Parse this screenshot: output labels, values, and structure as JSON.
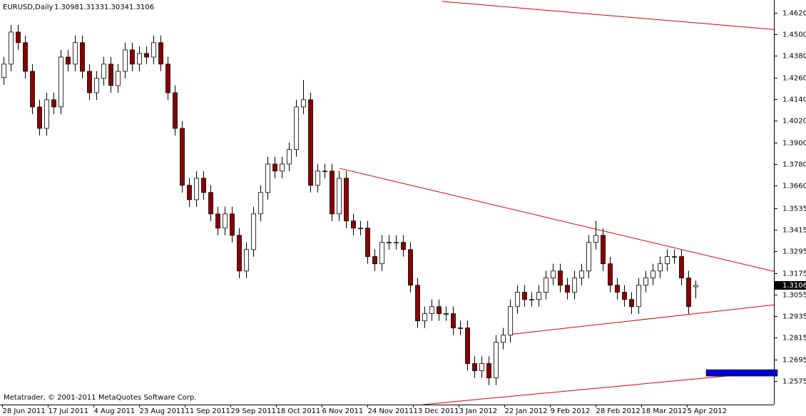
{
  "chart_data": {
    "type": "candlestick",
    "symbol": "EURUSD,Daily",
    "footer": "Metatrader, © 2001-2011 MetaQuotes Software Corp.",
    "xlim": [
      -0.5,
      108
    ],
    "xticks": [
      {
        "value": -0.2,
        "label": "28 Jun 2011"
      },
      {
        "value": 6.2,
        "label": "17 Jul 2011"
      },
      {
        "value": 12.6,
        "label": "4 Aug 2011"
      },
      {
        "value": 19,
        "label": "23 Aug 2011"
      },
      {
        "value": 25.4,
        "label": "11 Sep 2011"
      },
      {
        "value": 31.8,
        "label": "29 Sep 2011"
      },
      {
        "value": 38.2,
        "label": "18 Oct 2011"
      },
      {
        "value": 44.6,
        "label": "6 Nov 2011"
      },
      {
        "value": 51,
        "label": "24 Nov 2011"
      },
      {
        "value": 57.4,
        "label": "13 Dec 2011"
      },
      {
        "value": 63.8,
        "label": "3 Jan 2012"
      },
      {
        "value": 70.2,
        "label": "22 Jan 2012"
      },
      {
        "value": 76.6,
        "label": "9 Feb 2012"
      },
      {
        "value": 83,
        "label": "28 Feb 2012"
      },
      {
        "value": 89.4,
        "label": "18 Mar 2012"
      },
      {
        "value": 95.8,
        "label": "5 Apr 2012"
      }
    ],
    "ylim": [
      1.2444,
      1.4691
    ],
    "yticks": [
      {
        "value": 1.462,
        "label": "1.4620"
      },
      {
        "value": 1.45,
        "label": "1.4500"
      },
      {
        "value": 1.438,
        "label": "1.4380"
      },
      {
        "value": 1.426,
        "label": "1.4260"
      },
      {
        "value": 1.414,
        "label": "1.4140"
      },
      {
        "value": 1.402,
        "label": "1.4020"
      },
      {
        "value": 1.39,
        "label": "1.3900"
      },
      {
        "value": 1.378,
        "label": "1.3780"
      },
      {
        "value": 1.366,
        "label": "1.3660"
      },
      1.3535,
      1.3415,
      1.3295,
      1.3175,
      1.3055,
      1.2935,
      1.2815,
      1.2695,
      1.2575
    ],
    "up_color": "#ffffff",
    "down_color": "#8b0000",
    "open": [
      1.426,
      1.4335,
      1.4513,
      1.4454,
      1.4295,
      1.4097,
      1.3978,
      1.4137,
      1.4097,
      1.4374,
      1.4335,
      1.4454,
      1.4295,
      1.4176,
      1.4256,
      1.4335,
      1.4216,
      1.4295,
      1.4414,
      1.4335,
      1.4394,
      1.4374,
      1.4454,
      1.4335,
      1.4176,
      1.3978,
      1.3662,
      1.3582,
      1.3701,
      1.3622,
      1.3503,
      1.3424,
      1.3503,
      1.3384,
      1.3186,
      1.3305,
      1.3503,
      1.3622,
      1.378,
      1.3741,
      1.378,
      1.386,
      1.4097,
      1.4137,
      1.3662,
      1.3741,
      1.3741,
      1.3503,
      1.3701,
      1.3464,
      1.3424,
      1.3424,
      1.3266,
      1.3226,
      1.3345,
      1.3345,
      1.3345,
      1.3305,
      1.3107,
      1.2909,
      1.2949,
      1.2988,
      1.2949,
      1.2949,
      1.287,
      1.287,
      1.2672,
      1.2632,
      1.2672,
      1.2592,
      1.279,
      1.283,
      1.2988,
      1.3068,
      1.3028,
      1.3028,
      1.3068,
      1.3147,
      1.3186,
      1.3107,
      1.3068,
      1.3147,
      1.3186,
      1.3345,
      1.3384,
      1.3226,
      1.3107,
      1.3068,
      1.3028,
      1.2988,
      1.3107,
      1.3147,
      1.3186,
      1.3226,
      1.3266,
      1.3266,
      1.3147,
      1.3098
    ],
    "high": [
      1.4375,
      1.4553,
      1.4553,
      1.4494,
      1.4335,
      1.4137,
      1.4177,
      1.4177,
      1.4414,
      1.4414,
      1.4494,
      1.4494,
      1.4335,
      1.4296,
      1.4375,
      1.4375,
      1.4335,
      1.4454,
      1.4454,
      1.4434,
      1.4434,
      1.4494,
      1.4494,
      1.4375,
      1.4216,
      1.4018,
      1.3702,
      1.3741,
      1.3741,
      1.3662,
      1.3543,
      1.3543,
      1.3543,
      1.3424,
      1.3345,
      1.3543,
      1.3662,
      1.382,
      1.382,
      1.382,
      1.39,
      1.4137,
      1.4247,
      1.4177,
      1.3781,
      1.3781,
      1.3781,
      1.3741,
      1.3741,
      1.3504,
      1.3464,
      1.3464,
      1.3306,
      1.3385,
      1.3385,
      1.3385,
      1.3385,
      1.3345,
      1.3147,
      1.2989,
      1.3028,
      1.3028,
      1.2989,
      1.2989,
      1.291,
      1.291,
      1.2712,
      1.2712,
      1.2712,
      1.283,
      1.287,
      1.3028,
      1.3108,
      1.3108,
      1.3068,
      1.3108,
      1.3187,
      1.3226,
      1.3226,
      1.3147,
      1.3187,
      1.3226,
      1.3385,
      1.3464,
      1.3424,
      1.3266,
      1.3147,
      1.3108,
      1.3068,
      1.3147,
      1.3187,
      1.3226,
      1.3266,
      1.3306,
      1.3306,
      1.3306,
      1.3187,
      1.3133
    ],
    "low": [
      1.422,
      1.4295,
      1.4414,
      1.4255,
      1.4057,
      1.3938,
      1.3938,
      1.4057,
      1.4057,
      1.4295,
      1.4295,
      1.4255,
      1.4136,
      1.4136,
      1.4216,
      1.4176,
      1.4176,
      1.4255,
      1.4295,
      1.4295,
      1.4334,
      1.4334,
      1.4295,
      1.4136,
      1.3938,
      1.3622,
      1.3542,
      1.3542,
      1.3582,
      1.3463,
      1.3384,
      1.3384,
      1.3344,
      1.3146,
      1.3146,
      1.3265,
      1.3463,
      1.3582,
      1.3701,
      1.3701,
      1.374,
      1.382,
      1.4057,
      1.3622,
      1.3622,
      1.3701,
      1.3463,
      1.3463,
      1.3424,
      1.3384,
      1.3384,
      1.3226,
      1.3186,
      1.3186,
      1.3305,
      1.3305,
      1.3265,
      1.3067,
      1.2869,
      1.2869,
      1.2909,
      1.2909,
      1.2909,
      1.283,
      1.283,
      1.2632,
      1.2592,
      1.2592,
      1.2552,
      1.2552,
      1.275,
      1.279,
      1.2948,
      1.2988,
      1.2988,
      1.2988,
      1.3028,
      1.3107,
      1.3067,
      1.3028,
      1.3028,
      1.3107,
      1.3146,
      1.3305,
      1.3186,
      1.3067,
      1.3028,
      1.2988,
      1.2948,
      1.2948,
      1.3067,
      1.3107,
      1.3146,
      1.3186,
      1.3226,
      1.3107,
      1.2948,
      1.3034
    ],
    "close": [
      1.4335,
      1.4513,
      1.4454,
      1.4295,
      1.4097,
      1.3978,
      1.4137,
      1.4097,
      1.4374,
      1.4335,
      1.4454,
      1.4295,
      1.4176,
      1.4256,
      1.4335,
      1.4216,
      1.4295,
      1.4414,
      1.4335,
      1.4394,
      1.4374,
      1.4454,
      1.4335,
      1.4176,
      1.3978,
      1.3662,
      1.3582,
      1.3701,
      1.3622,
      1.3503,
      1.3424,
      1.3503,
      1.3384,
      1.3186,
      1.3305,
      1.3503,
      1.3622,
      1.378,
      1.3741,
      1.378,
      1.386,
      1.4097,
      1.4137,
      1.3662,
      1.3741,
      1.3741,
      1.3503,
      1.3701,
      1.3464,
      1.3424,
      1.3424,
      1.3266,
      1.3226,
      1.3345,
      1.3345,
      1.3345,
      1.3305,
      1.3107,
      1.2909,
      1.2949,
      1.2988,
      1.2949,
      1.2949,
      1.287,
      1.287,
      1.2672,
      1.2632,
      1.2672,
      1.2592,
      1.279,
      1.283,
      1.2988,
      1.3068,
      1.3028,
      1.3028,
      1.3068,
      1.3147,
      1.3186,
      1.3107,
      1.3068,
      1.3147,
      1.3186,
      1.3345,
      1.3384,
      1.3226,
      1.3107,
      1.3068,
      1.3028,
      1.2988,
      1.3107,
      1.3147,
      1.3186,
      1.3226,
      1.3266,
      1.3266,
      1.3147,
      1.2988,
      1.3106
    ],
    "trendlines": [
      {
        "color": "#e00000",
        "x": [
          61.5,
          108.7
        ],
        "y": [
          1.4683,
          1.4525
        ]
      },
      {
        "color": "#e00000",
        "x": [
          47.1,
          108.7
        ],
        "y": [
          1.3756,
          1.3177
        ]
      },
      {
        "color": "#e00000",
        "x": [
          71.3,
          108.7
        ],
        "y": [
          1.2835,
          1.3001
        ]
      },
      {
        "color": "#e00000",
        "x": [
          58.8,
          108.7
        ],
        "y": [
          1.2444,
          1.263
        ]
      }
    ],
    "rectangle": {
      "color": "#0000cc",
      "x": [
        98.5,
        108.5
      ],
      "y": [
        1.2602,
        1.2638
      ]
    }
  }
}
